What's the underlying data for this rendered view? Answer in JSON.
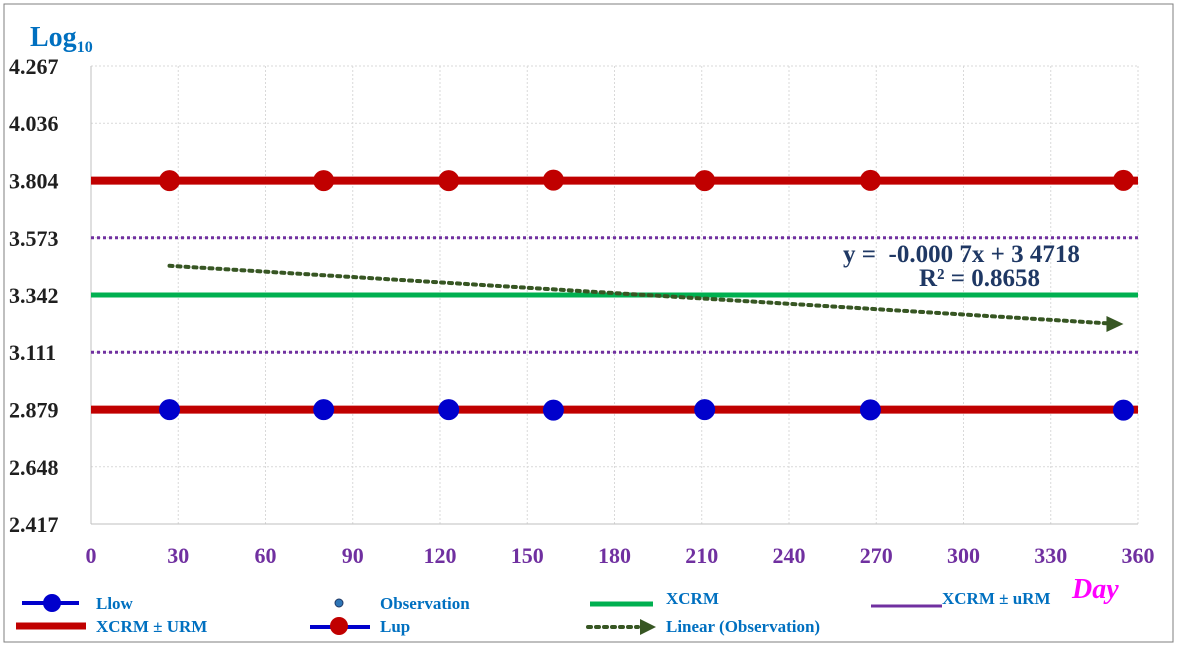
{
  "chart_data": {
    "type": "line",
    "y_axis_title": "Log",
    "y_axis_title_subscript": "10",
    "x_axis_title": "Day",
    "xlim": [
      0,
      360
    ],
    "ylim": [
      2.417,
      4.267
    ],
    "x_ticks": [
      "0",
      "30",
      "60",
      "90",
      "120",
      "150",
      "180",
      "210",
      "240",
      "270",
      "300",
      "330",
      "360"
    ],
    "x_tick_values": [
      0,
      30,
      60,
      90,
      120,
      150,
      180,
      210,
      240,
      270,
      300,
      330,
      360
    ],
    "y_ticks": [
      "2.417",
      "2.648",
      "2.879",
      "3.111",
      "3.342",
      "3.573",
      "3.804",
      "4.036",
      "4.267"
    ],
    "y_tick_values": [
      2.417,
      2.648,
      2.879,
      3.111,
      3.342,
      3.573,
      3.804,
      4.036,
      4.267
    ],
    "grid": true,
    "legend_position": "bottom",
    "series": [
      {
        "name": "Lup",
        "color": "#c00000",
        "marker": "circle",
        "x": [
          27,
          80,
          123,
          159,
          211,
          268,
          355
        ],
        "y": [
          3.804,
          3.804,
          3.804,
          3.806,
          3.804,
          3.805,
          3.805
        ]
      },
      {
        "name": "Llow",
        "color": "#0000cc",
        "marker": "circle",
        "x": [
          27,
          80,
          123,
          159,
          211,
          268,
          355
        ],
        "y": [
          2.879,
          2.879,
          2.879,
          2.877,
          2.879,
          2.878,
          2.877
        ]
      },
      {
        "name": "XCRM ± URM",
        "color": "#c00000",
        "values_constant": [
          3.804,
          2.879
        ]
      },
      {
        "name": "XCRM",
        "color": "#00b050",
        "value_constant": 3.342
      },
      {
        "name": "XCRM ± uRM",
        "color": "#7030a0",
        "values_constant": [
          3.573,
          3.111
        ]
      },
      {
        "name": "Linear (Observation)",
        "color": "#375623",
        "x": [
          27,
          355
        ],
        "y": [
          3.46,
          3.225
        ]
      }
    ],
    "legend": [
      {
        "label": "Llow",
        "style": "line-marker",
        "color": "#0000cc"
      },
      {
        "label": "Observation",
        "style": "marker",
        "color": "#2e75b6"
      },
      {
        "label": "XCRM",
        "style": "line",
        "color": "#00b050"
      },
      {
        "label": "XCRM ± uRM",
        "style": "line",
        "color": "#7030a0"
      },
      {
        "label": "XCRM ± URM",
        "style": "line",
        "color": "#c00000"
      },
      {
        "label": "Lup",
        "style": "line-marker-red",
        "color": "#0000cc"
      },
      {
        "label": "Linear (Observation)",
        "style": "dotted-arrow",
        "color": "#375623"
      }
    ],
    "annotation_line1": "y =  -0.000 7x + 3 4718",
    "annotation_line2": "R² = 0.8658"
  },
  "colors": {
    "axis_label": "#0070c0",
    "tick_x": "#7030a0",
    "tick_y": "#1f1f1f",
    "day_label": "#ff00ff",
    "legend_text": "#0070c0"
  }
}
